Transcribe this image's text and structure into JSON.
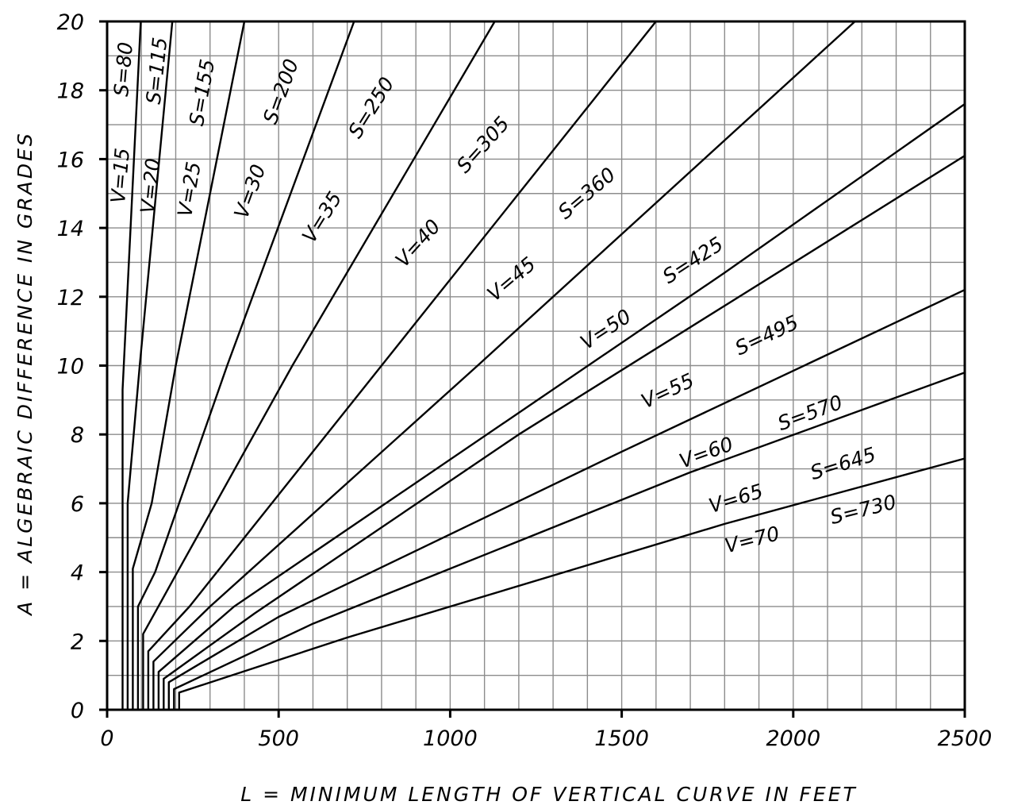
{
  "chart_data": {
    "type": "line",
    "title": "",
    "xlabel": "L = MINIMUM LENGTH OF VERTICAL CURVE IN FEET",
    "ylabel": "A = ALGEBRAIC DIFFERENCE IN GRADES",
    "xlim": [
      0,
      2500
    ],
    "ylim": [
      0,
      20
    ],
    "x_ticks": [
      0,
      500,
      1000,
      1500,
      2000,
      2500
    ],
    "x_tick_labels": [
      "0",
      "500",
      "1000",
      "1500",
      "2000",
      "2500"
    ],
    "y_ticks": [
      0,
      2,
      4,
      6,
      8,
      10,
      12,
      14,
      16,
      18,
      20
    ],
    "y_tick_labels": [
      "0",
      "2",
      "4",
      "6",
      "8",
      "10",
      "12",
      "14",
      "16",
      "18",
      "20"
    ],
    "x_grid_step": 100,
    "y_grid_step": 1,
    "grid": true,
    "series": [
      {
        "name": "V=15 S=80",
        "label_v": "V=15",
        "label_s": "S=80",
        "min_length": 45,
        "knee_a": 9.3,
        "points": [
          [
            45,
            0
          ],
          [
            45,
            9.3
          ],
          [
            98,
            20
          ]
        ]
      },
      {
        "name": "V=20 S=115",
        "label_v": "V=20",
        "label_s": "S=115",
        "min_length": 60,
        "knee_a": 6.0,
        "points": [
          [
            60,
            0
          ],
          [
            60,
            6.0
          ],
          [
            95,
            10
          ],
          [
            190,
            20
          ]
        ]
      },
      {
        "name": "V=25 S=155",
        "label_v": "V=25",
        "label_s": "S=155",
        "min_length": 75,
        "knee_a": 4.1,
        "points": [
          [
            75,
            0
          ],
          [
            75,
            4.1
          ],
          [
            130,
            6
          ],
          [
            200,
            10
          ],
          [
            400,
            20
          ]
        ]
      },
      {
        "name": "V=30 S=200",
        "label_v": "V=30",
        "label_s": "S=200",
        "min_length": 90,
        "knee_a": 3.0,
        "points": [
          [
            90,
            0
          ],
          [
            90,
            3.0
          ],
          [
            140,
            4
          ],
          [
            350,
            10
          ],
          [
            720,
            20
          ]
        ]
      },
      {
        "name": "V=35 S=250",
        "label_v": "V=35",
        "label_s": "S=250",
        "min_length": 105,
        "knee_a": 2.2,
        "points": [
          [
            105,
            0
          ],
          [
            105,
            2.2
          ],
          [
            205,
            4
          ],
          [
            540,
            10
          ],
          [
            1130,
            20
          ]
        ]
      },
      {
        "name": "V=40 S=305",
        "label_v": "V=40",
        "label_s": "S=305",
        "min_length": 120,
        "knee_a": 1.7,
        "points": [
          [
            120,
            0
          ],
          [
            120,
            1.7
          ],
          [
            240,
            3
          ],
          [
            800,
            10
          ],
          [
            1600,
            20
          ]
        ]
      },
      {
        "name": "V=45 S=360",
        "label_v": "V=45",
        "label_s": "S=360",
        "min_length": 135,
        "knee_a": 1.4,
        "points": [
          [
            135,
            0
          ],
          [
            135,
            1.4
          ],
          [
            300,
            3
          ],
          [
            1080,
            10
          ],
          [
            2180,
            20
          ]
        ]
      },
      {
        "name": "V=50 S=425",
        "label_v": "V=50",
        "label_s": "S=425",
        "min_length": 150,
        "knee_a": 1.1,
        "points": [
          [
            150,
            0
          ],
          [
            150,
            1.1
          ],
          [
            370,
            3
          ],
          [
            1800,
            12.7
          ],
          [
            2500,
            17.6
          ]
        ]
      },
      {
        "name": "V=55 S=495",
        "label_v": "V=55",
        "label_s": "S=495",
        "min_length": 165,
        "knee_a": 0.9,
        "points": [
          [
            165,
            0
          ],
          [
            165,
            0.9
          ],
          [
            430,
            2.8
          ],
          [
            1200,
            8
          ],
          [
            2500,
            16.1
          ]
        ]
      },
      {
        "name": "V=60 S=570",
        "label_v": "V=60",
        "label_s": "S=570",
        "min_length": 180,
        "knee_a": 0.8,
        "points": [
          [
            180,
            0
          ],
          [
            180,
            0.8
          ],
          [
            500,
            2.7
          ],
          [
            1500,
            7.5
          ],
          [
            2500,
            12.2
          ]
        ]
      },
      {
        "name": "V=65 S=645",
        "label_v": "V=65",
        "label_s": "S=645",
        "min_length": 195,
        "knee_a": 0.6,
        "points": [
          [
            195,
            0
          ],
          [
            195,
            0.6
          ],
          [
            600,
            2.5
          ],
          [
            1700,
            6.9
          ],
          [
            2500,
            9.8
          ]
        ]
      },
      {
        "name": "V=70 S=730",
        "label_v": "V=70",
        "label_s": "S=730",
        "min_length": 210,
        "knee_a": 0.5,
        "points": [
          [
            210,
            0
          ],
          [
            210,
            0.5
          ],
          [
            700,
            2.1
          ],
          [
            1800,
            5.4
          ],
          [
            2500,
            7.3
          ]
        ]
      }
    ]
  }
}
